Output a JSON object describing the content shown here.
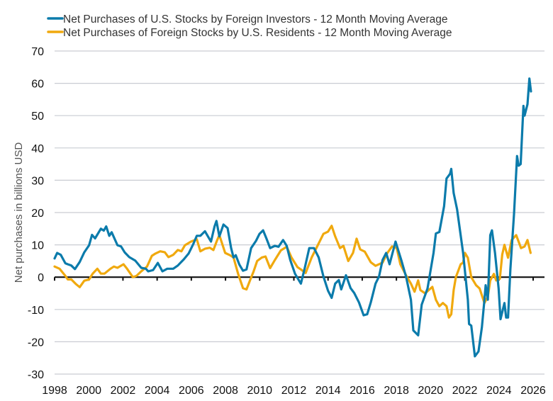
{
  "chart_data": {
    "type": "line",
    "title": "",
    "xlabel": "",
    "ylabel": "Net purchases in billions USD",
    "xlim": [
      1998,
      2026
    ],
    "ylim": [
      -30,
      70
    ],
    "x_ticks": [
      "1998",
      "2000",
      "2002",
      "2004",
      "2006",
      "2008",
      "2010",
      "2012",
      "2014",
      "2016",
      "2018",
      "2020",
      "2022",
      "2024",
      "2026"
    ],
    "y_ticks": [
      "70",
      "60",
      "50",
      "40",
      "30",
      "20",
      "10",
      "0",
      "-10",
      "-20",
      "-30"
    ],
    "grid": "horizontal",
    "legend_placement": "top-left",
    "series": [
      {
        "name": "Net Purchases of U.S. Stocks by Foreign Investors - 12 Month Moving Average",
        "color": "#0b7bab",
        "points": [
          [
            1998.0,
            5.8
          ],
          [
            1998.15,
            7.5
          ],
          [
            1998.36,
            6.9
          ],
          [
            1998.63,
            4.3
          ],
          [
            1998.77,
            4.0
          ],
          [
            1998.98,
            3.6
          ],
          [
            1999.19,
            2.5
          ],
          [
            1999.47,
            4.7
          ],
          [
            1999.74,
            7.7
          ],
          [
            2000.02,
            9.9
          ],
          [
            2000.19,
            13.1
          ],
          [
            2000.37,
            12.0
          ],
          [
            2000.71,
            15.0
          ],
          [
            2000.88,
            14.4
          ],
          [
            2001.02,
            15.7
          ],
          [
            2001.2,
            12.8
          ],
          [
            2001.34,
            13.9
          ],
          [
            2001.68,
            9.9
          ],
          [
            2001.89,
            9.5
          ],
          [
            2002.1,
            7.7
          ],
          [
            2002.37,
            6.2
          ],
          [
            2002.72,
            5.1
          ],
          [
            2003.07,
            2.9
          ],
          [
            2003.34,
            2.6
          ],
          [
            2003.48,
            1.8
          ],
          [
            2003.76,
            2.2
          ],
          [
            2004.04,
            4.4
          ],
          [
            2004.31,
            1.8
          ],
          [
            2004.59,
            2.6
          ],
          [
            2004.94,
            2.6
          ],
          [
            2005.21,
            3.6
          ],
          [
            2005.56,
            5.5
          ],
          [
            2005.84,
            7.3
          ],
          [
            2006.11,
            10.2
          ],
          [
            2006.32,
            12.8
          ],
          [
            2006.53,
            12.8
          ],
          [
            2006.8,
            14.2
          ],
          [
            2006.95,
            12.8
          ],
          [
            2007.15,
            11.0
          ],
          [
            2007.36,
            15.7
          ],
          [
            2007.47,
            17.4
          ],
          [
            2007.64,
            12.6
          ],
          [
            2007.88,
            16.3
          ],
          [
            2008.12,
            15.2
          ],
          [
            2008.33,
            9.0
          ],
          [
            2008.47,
            6.1
          ],
          [
            2008.6,
            6.8
          ],
          [
            2008.81,
            3.9
          ],
          [
            2009.02,
            2.0
          ],
          [
            2009.23,
            2.4
          ],
          [
            2009.5,
            9.0
          ],
          [
            2009.78,
            11.2
          ],
          [
            2009.99,
            13.4
          ],
          [
            2010.2,
            14.5
          ],
          [
            2010.4,
            11.9
          ],
          [
            2010.61,
            9.0
          ],
          [
            2010.89,
            9.7
          ],
          [
            2011.1,
            9.4
          ],
          [
            2011.37,
            11.5
          ],
          [
            2011.58,
            9.7
          ],
          [
            2011.79,
            5.3
          ],
          [
            2012.07,
            1.0
          ],
          [
            2012.41,
            -2.0
          ],
          [
            2012.62,
            2.4
          ],
          [
            2012.9,
            9.0
          ],
          [
            2013.18,
            9.0
          ],
          [
            2013.45,
            6.1
          ],
          [
            2013.73,
            0.2
          ],
          [
            2014.0,
            -4.2
          ],
          [
            2014.21,
            -6.4
          ],
          [
            2014.42,
            -2.0
          ],
          [
            2014.63,
            -0.9
          ],
          [
            2014.77,
            -3.8
          ],
          [
            2015.05,
            0.6
          ],
          [
            2015.32,
            -3.4
          ],
          [
            2015.53,
            -4.9
          ],
          [
            2015.81,
            -7.8
          ],
          [
            2016.08,
            -11.8
          ],
          [
            2016.29,
            -11.5
          ],
          [
            2016.5,
            -7.8
          ],
          [
            2016.78,
            -2.0
          ],
          [
            2016.98,
            0.2
          ],
          [
            2017.19,
            5.3
          ],
          [
            2017.4,
            7.5
          ],
          [
            2017.6,
            4.0
          ],
          [
            2017.95,
            11.0
          ],
          [
            2018.3,
            5.0
          ],
          [
            2018.57,
            0.0
          ],
          [
            2018.85,
            -7.0
          ],
          [
            2018.99,
            -16.5
          ],
          [
            2019.27,
            -18.0
          ],
          [
            2019.48,
            -8.5
          ],
          [
            2019.82,
            -3.5
          ],
          [
            2020.17,
            7.5
          ],
          [
            2020.31,
            13.5
          ],
          [
            2020.51,
            14.0
          ],
          [
            2020.79,
            22.0
          ],
          [
            2020.93,
            30.5
          ],
          [
            2021.14,
            32.0
          ],
          [
            2021.21,
            33.5
          ],
          [
            2021.35,
            26.0
          ],
          [
            2021.55,
            21.0
          ],
          [
            2021.9,
            7.5
          ],
          [
            2022.18,
            -7.0
          ],
          [
            2022.25,
            -14.5
          ],
          [
            2022.38,
            -15.0
          ],
          [
            2022.59,
            -24.5
          ],
          [
            2022.8,
            -23.0
          ],
          [
            2023.0,
            -15.5
          ],
          [
            2023.15,
            -7.0
          ],
          [
            2023.22,
            -2.5
          ],
          [
            2023.35,
            -7.0
          ],
          [
            2023.49,
            13.0
          ],
          [
            2023.59,
            14.5
          ],
          [
            2023.77,
            7.5
          ],
          [
            2023.98,
            -3.5
          ],
          [
            2024.09,
            -13.0
          ],
          [
            2024.32,
            -8.0
          ],
          [
            2024.42,
            -12.5
          ],
          [
            2024.53,
            -12.5
          ],
          [
            2024.67,
            2.5
          ],
          [
            2024.88,
            19.5
          ],
          [
            2025.06,
            37.5
          ],
          [
            2025.15,
            34.5
          ],
          [
            2025.27,
            35.0
          ],
          [
            2025.43,
            53.0
          ],
          [
            2025.5,
            50.0
          ],
          [
            2025.67,
            53.5
          ],
          [
            2025.78,
            61.5
          ],
          [
            2025.87,
            57.5
          ]
        ]
      },
      {
        "name": "Net Purchases of Foreign Stocks by U.S. Residents - 12 Month Moving Average",
        "color": "#f0a90e",
        "points": [
          [
            1998.0,
            3.3
          ],
          [
            1998.29,
            2.6
          ],
          [
            1998.63,
            0.4
          ],
          [
            1998.77,
            -0.7
          ],
          [
            1998.98,
            -0.7
          ],
          [
            1999.26,
            -2.2
          ],
          [
            1999.47,
            -3.1
          ],
          [
            1999.74,
            -1.1
          ],
          [
            2000.02,
            -0.7
          ],
          [
            2000.23,
            1.1
          ],
          [
            2000.5,
            2.6
          ],
          [
            2000.71,
            1.1
          ],
          [
            2000.92,
            1.1
          ],
          [
            2001.27,
            2.6
          ],
          [
            2001.47,
            3.3
          ],
          [
            2001.68,
            2.9
          ],
          [
            2002.03,
            4.0
          ],
          [
            2002.24,
            2.6
          ],
          [
            2002.58,
            0.0
          ],
          [
            2002.79,
            0.4
          ],
          [
            2003.07,
            1.8
          ],
          [
            2003.41,
            3.3
          ],
          [
            2003.69,
            6.6
          ],
          [
            2003.9,
            7.3
          ],
          [
            2004.18,
            8.0
          ],
          [
            2004.45,
            7.7
          ],
          [
            2004.66,
            6.2
          ],
          [
            2004.94,
            6.9
          ],
          [
            2005.21,
            8.4
          ],
          [
            2005.42,
            8.0
          ],
          [
            2005.63,
            9.9
          ],
          [
            2005.98,
            11.0
          ],
          [
            2006.32,
            11.7
          ],
          [
            2006.53,
            8.0
          ],
          [
            2006.8,
            8.8
          ],
          [
            2007.08,
            9.1
          ],
          [
            2007.29,
            8.4
          ],
          [
            2007.5,
            11.3
          ],
          [
            2007.64,
            13.0
          ],
          [
            2007.98,
            7.5
          ],
          [
            2008.26,
            6.8
          ],
          [
            2008.47,
            6.1
          ],
          [
            2008.74,
            1.0
          ],
          [
            2009.02,
            -3.4
          ],
          [
            2009.23,
            -3.8
          ],
          [
            2009.44,
            -0.9
          ],
          [
            2009.64,
            1.7
          ],
          [
            2009.85,
            5.0
          ],
          [
            2010.13,
            6.1
          ],
          [
            2010.34,
            6.4
          ],
          [
            2010.61,
            2.8
          ],
          [
            2010.89,
            5.3
          ],
          [
            2011.24,
            8.3
          ],
          [
            2011.58,
            9.4
          ],
          [
            2011.86,
            6.1
          ],
          [
            2012.21,
            3.1
          ],
          [
            2012.41,
            2.4
          ],
          [
            2012.69,
            1.3
          ],
          [
            2013.04,
            6.1
          ],
          [
            2013.38,
            9.7
          ],
          [
            2013.73,
            13.4
          ],
          [
            2014.0,
            14.1
          ],
          [
            2014.21,
            15.9
          ],
          [
            2014.42,
            12.6
          ],
          [
            2014.7,
            9.0
          ],
          [
            2014.9,
            9.7
          ],
          [
            2015.18,
            5.0
          ],
          [
            2015.46,
            7.5
          ],
          [
            2015.67,
            11.9
          ],
          [
            2015.88,
            8.6
          ],
          [
            2016.15,
            7.9
          ],
          [
            2016.5,
            4.6
          ],
          [
            2016.78,
            3.5
          ],
          [
            2017.19,
            4.5
          ],
          [
            2017.47,
            7.5
          ],
          [
            2017.74,
            9.5
          ],
          [
            2018.02,
            9.0
          ],
          [
            2018.23,
            4.0
          ],
          [
            2018.57,
            0.5
          ],
          [
            2018.85,
            -2.0
          ],
          [
            2019.06,
            -4.5
          ],
          [
            2019.27,
            -1.0
          ],
          [
            2019.4,
            -4.0
          ],
          [
            2019.68,
            -5.0
          ],
          [
            2020.1,
            -3.0
          ],
          [
            2020.31,
            -7.0
          ],
          [
            2020.51,
            -9.0
          ],
          [
            2020.72,
            -8.0
          ],
          [
            2020.93,
            -9.0
          ],
          [
            2021.07,
            -12.5
          ],
          [
            2021.21,
            -11.5
          ],
          [
            2021.35,
            -4.0
          ],
          [
            2021.48,
            0.0
          ],
          [
            2021.76,
            4.0
          ],
          [
            2021.9,
            4.5
          ],
          [
            2022.01,
            7.5
          ],
          [
            2022.18,
            6.0
          ],
          [
            2022.38,
            0.0
          ],
          [
            2022.66,
            -2.5
          ],
          [
            2022.87,
            -3.5
          ],
          [
            2023.15,
            -8.0
          ],
          [
            2023.35,
            -6.0
          ],
          [
            2023.49,
            -1.0
          ],
          [
            2023.7,
            1.0
          ],
          [
            2023.84,
            -1.0
          ],
          [
            2024.05,
            -0.5
          ],
          [
            2024.19,
            7.0
          ],
          [
            2024.32,
            10.0
          ],
          [
            2024.53,
            6.0
          ],
          [
            2024.74,
            11.5
          ],
          [
            2025.01,
            13.0
          ],
          [
            2025.29,
            9.0
          ],
          [
            2025.5,
            9.5
          ],
          [
            2025.67,
            11.5
          ],
          [
            2025.85,
            7.5
          ]
        ]
      }
    ]
  }
}
